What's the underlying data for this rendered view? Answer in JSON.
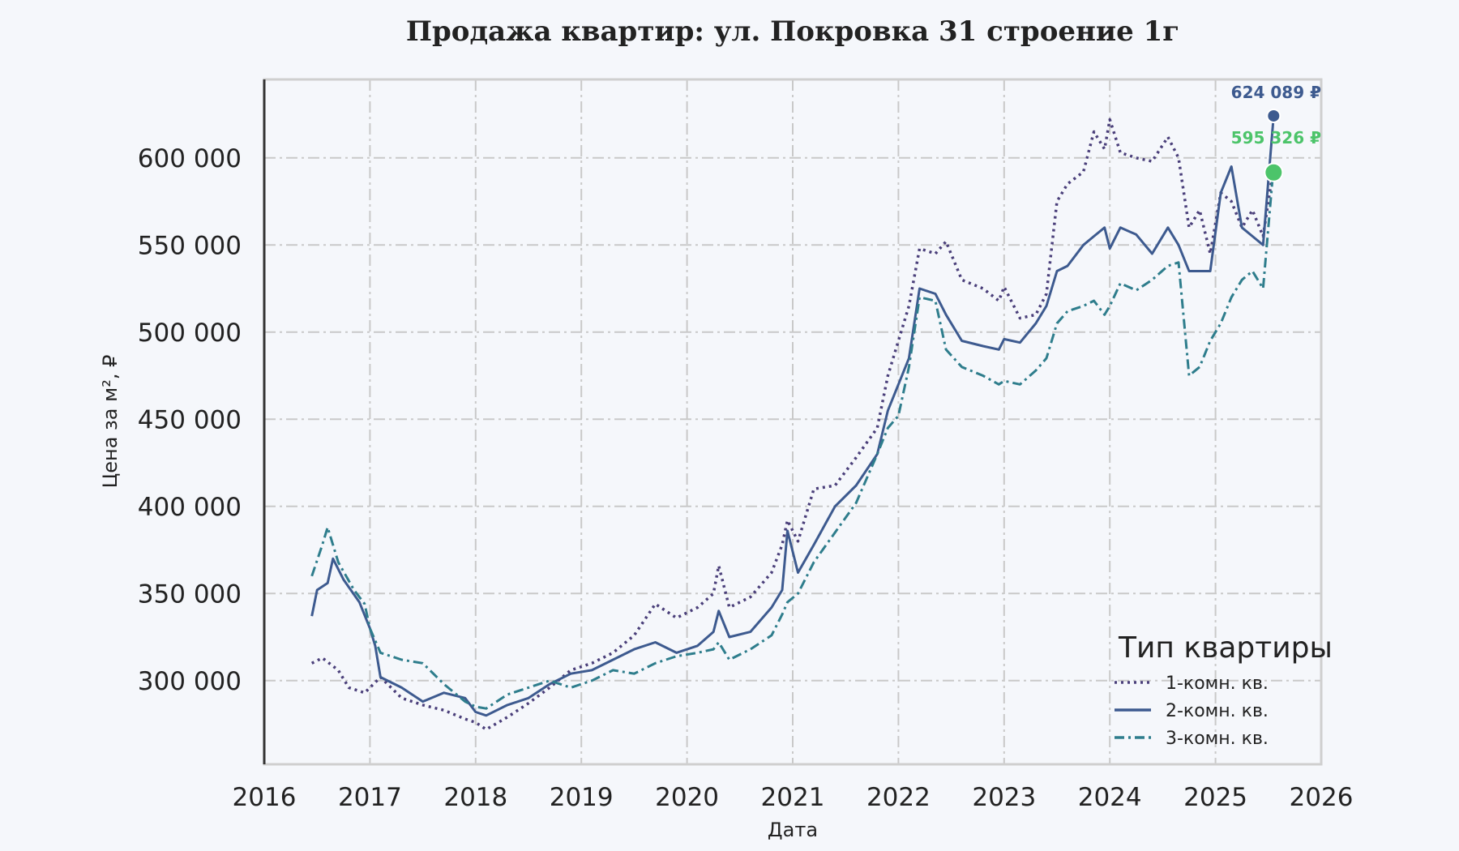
{
  "chart_data": {
    "type": "line",
    "title": "Продажа квартир: ул. Покровка 31 строение 1г",
    "xlabel": "Дата",
    "ylabel": "Цена за м², ₽",
    "xlim": [
      2016,
      2026
    ],
    "ylim": [
      252000,
      645000
    ],
    "x_ticks": [
      2016,
      2017,
      2018,
      2019,
      2020,
      2021,
      2022,
      2023,
      2024,
      2025,
      2026
    ],
    "y_ticks": [
      300000,
      350000,
      400000,
      450000,
      500000,
      550000,
      600000
    ],
    "y_tick_labels": [
      "300 000",
      "350 000",
      "400 000",
      "450 000",
      "500 000",
      "550 000",
      "600 000"
    ],
    "grid": true,
    "legend": {
      "title": "Тип квартиры",
      "position": "bottom-right"
    },
    "series": [
      {
        "name": "1-комн. кв.",
        "color": "#4a3f7a",
        "style": "dotted",
        "points": [
          [
            2016.45,
            310000
          ],
          [
            2016.55,
            313000
          ],
          [
            2016.7,
            306000
          ],
          [
            2016.8,
            296000
          ],
          [
            2016.95,
            293000
          ],
          [
            2017.1,
            302000
          ],
          [
            2017.3,
            290000
          ],
          [
            2017.5,
            286000
          ],
          [
            2017.7,
            283000
          ],
          [
            2017.9,
            278000
          ],
          [
            2018.0,
            276000
          ],
          [
            2018.1,
            272000
          ],
          [
            2018.3,
            279000
          ],
          [
            2018.5,
            287000
          ],
          [
            2018.7,
            296000
          ],
          [
            2018.9,
            306000
          ],
          [
            2019.1,
            310000
          ],
          [
            2019.3,
            316000
          ],
          [
            2019.5,
            326000
          ],
          [
            2019.7,
            344000
          ],
          [
            2019.9,
            336000
          ],
          [
            2020.1,
            342000
          ],
          [
            2020.25,
            350000
          ],
          [
            2020.3,
            366000
          ],
          [
            2020.4,
            342000
          ],
          [
            2020.6,
            348000
          ],
          [
            2020.8,
            362000
          ],
          [
            2020.9,
            378000
          ],
          [
            2020.95,
            392000
          ],
          [
            2021.05,
            380000
          ],
          [
            2021.2,
            410000
          ],
          [
            2021.4,
            412000
          ],
          [
            2021.6,
            428000
          ],
          [
            2021.8,
            445000
          ],
          [
            2021.9,
            475000
          ],
          [
            2022.0,
            495000
          ],
          [
            2022.1,
            515000
          ],
          [
            2022.2,
            548000
          ],
          [
            2022.35,
            545000
          ],
          [
            2022.45,
            552000
          ],
          [
            2022.6,
            530000
          ],
          [
            2022.8,
            525000
          ],
          [
            2022.95,
            518000
          ],
          [
            2023.0,
            526000
          ],
          [
            2023.15,
            508000
          ],
          [
            2023.3,
            510000
          ],
          [
            2023.4,
            522000
          ],
          [
            2023.5,
            575000
          ],
          [
            2023.6,
            585000
          ],
          [
            2023.75,
            592000
          ],
          [
            2023.85,
            615000
          ],
          [
            2023.95,
            605000
          ],
          [
            2024.0,
            622000
          ],
          [
            2024.1,
            603000
          ],
          [
            2024.25,
            600000
          ],
          [
            2024.4,
            598000
          ],
          [
            2024.55,
            612000
          ],
          [
            2024.65,
            600000
          ],
          [
            2024.75,
            560000
          ],
          [
            2024.85,
            570000
          ],
          [
            2024.95,
            545000
          ],
          [
            2025.05,
            580000
          ],
          [
            2025.15,
            575000
          ],
          [
            2025.25,
            560000
          ],
          [
            2025.35,
            570000
          ],
          [
            2025.45,
            555000
          ],
          [
            2025.55,
            595000
          ]
        ]
      },
      {
        "name": "2-комн. кв.",
        "color": "#3d5a8f",
        "style": "solid",
        "points": [
          [
            2016.45,
            337000
          ],
          [
            2016.5,
            352000
          ],
          [
            2016.6,
            356000
          ],
          [
            2016.65,
            370000
          ],
          [
            2016.75,
            358000
          ],
          [
            2016.9,
            345000
          ],
          [
            2017.0,
            330000
          ],
          [
            2017.05,
            320000
          ],
          [
            2017.1,
            302000
          ],
          [
            2017.3,
            296000
          ],
          [
            2017.5,
            288000
          ],
          [
            2017.7,
            293000
          ],
          [
            2017.9,
            290000
          ],
          [
            2018.0,
            282000
          ],
          [
            2018.1,
            280000
          ],
          [
            2018.3,
            286000
          ],
          [
            2018.5,
            290000
          ],
          [
            2018.7,
            298000
          ],
          [
            2018.9,
            304000
          ],
          [
            2019.1,
            306000
          ],
          [
            2019.3,
            312000
          ],
          [
            2019.5,
            318000
          ],
          [
            2019.7,
            322000
          ],
          [
            2019.9,
            316000
          ],
          [
            2020.1,
            320000
          ],
          [
            2020.25,
            328000
          ],
          [
            2020.3,
            340000
          ],
          [
            2020.4,
            325000
          ],
          [
            2020.6,
            328000
          ],
          [
            2020.8,
            342000
          ],
          [
            2020.9,
            352000
          ],
          [
            2020.95,
            386000
          ],
          [
            2021.05,
            362000
          ],
          [
            2021.2,
            378000
          ],
          [
            2021.4,
            400000
          ],
          [
            2021.6,
            412000
          ],
          [
            2021.8,
            430000
          ],
          [
            2021.9,
            455000
          ],
          [
            2022.0,
            470000
          ],
          [
            2022.1,
            485000
          ],
          [
            2022.2,
            525000
          ],
          [
            2022.35,
            522000
          ],
          [
            2022.45,
            510000
          ],
          [
            2022.6,
            495000
          ],
          [
            2022.8,
            492000
          ],
          [
            2022.95,
            490000
          ],
          [
            2023.0,
            496000
          ],
          [
            2023.15,
            494000
          ],
          [
            2023.3,
            505000
          ],
          [
            2023.4,
            515000
          ],
          [
            2023.5,
            535000
          ],
          [
            2023.6,
            538000
          ],
          [
            2023.75,
            550000
          ],
          [
            2023.85,
            555000
          ],
          [
            2023.95,
            560000
          ],
          [
            2024.0,
            548000
          ],
          [
            2024.1,
            560000
          ],
          [
            2024.25,
            556000
          ],
          [
            2024.4,
            545000
          ],
          [
            2024.55,
            560000
          ],
          [
            2024.65,
            550000
          ],
          [
            2024.75,
            535000
          ],
          [
            2024.85,
            535000
          ],
          [
            2024.95,
            535000
          ],
          [
            2025.05,
            580000
          ],
          [
            2025.15,
            595000
          ],
          [
            2025.25,
            560000
          ],
          [
            2025.35,
            555000
          ],
          [
            2025.45,
            550000
          ],
          [
            2025.55,
            624089
          ]
        ]
      },
      {
        "name": "3-комн. кв.",
        "color": "#2e7d8c",
        "style": "dashdot",
        "points": [
          [
            2016.45,
            360000
          ],
          [
            2016.55,
            378000
          ],
          [
            2016.6,
            388000
          ],
          [
            2016.7,
            368000
          ],
          [
            2016.85,
            352000
          ],
          [
            2016.95,
            344000
          ],
          [
            2017.0,
            330000
          ],
          [
            2017.1,
            316000
          ],
          [
            2017.3,
            312000
          ],
          [
            2017.5,
            310000
          ],
          [
            2017.7,
            298000
          ],
          [
            2017.9,
            288000
          ],
          [
            2018.0,
            285000
          ],
          [
            2018.1,
            284000
          ],
          [
            2018.3,
            292000
          ],
          [
            2018.5,
            296000
          ],
          [
            2018.7,
            300000
          ],
          [
            2018.9,
            296000
          ],
          [
            2019.1,
            300000
          ],
          [
            2019.3,
            306000
          ],
          [
            2019.5,
            304000
          ],
          [
            2019.7,
            310000
          ],
          [
            2019.9,
            314000
          ],
          [
            2020.1,
            316000
          ],
          [
            2020.25,
            318000
          ],
          [
            2020.3,
            322000
          ],
          [
            2020.4,
            312000
          ],
          [
            2020.6,
            318000
          ],
          [
            2020.8,
            326000
          ],
          [
            2020.9,
            338000
          ],
          [
            2020.95,
            345000
          ],
          [
            2021.05,
            350000
          ],
          [
            2021.2,
            368000
          ],
          [
            2021.4,
            385000
          ],
          [
            2021.6,
            402000
          ],
          [
            2021.8,
            430000
          ],
          [
            2021.9,
            445000
          ],
          [
            2022.0,
            452000
          ],
          [
            2022.1,
            480000
          ],
          [
            2022.2,
            520000
          ],
          [
            2022.35,
            518000
          ],
          [
            2022.45,
            490000
          ],
          [
            2022.6,
            480000
          ],
          [
            2022.8,
            475000
          ],
          [
            2022.95,
            470000
          ],
          [
            2023.0,
            472000
          ],
          [
            2023.15,
            470000
          ],
          [
            2023.3,
            478000
          ],
          [
            2023.4,
            485000
          ],
          [
            2023.5,
            505000
          ],
          [
            2023.6,
            512000
          ],
          [
            2023.75,
            515000
          ],
          [
            2023.85,
            518000
          ],
          [
            2023.95,
            510000
          ],
          [
            2024.0,
            515000
          ],
          [
            2024.1,
            528000
          ],
          [
            2024.25,
            524000
          ],
          [
            2024.4,
            530000
          ],
          [
            2024.55,
            538000
          ],
          [
            2024.65,
            540000
          ],
          [
            2024.75,
            475000
          ],
          [
            2024.85,
            480000
          ],
          [
            2024.95,
            495000
          ],
          [
            2025.05,
            505000
          ],
          [
            2025.15,
            520000
          ],
          [
            2025.25,
            530000
          ],
          [
            2025.35,
            535000
          ],
          [
            2025.45,
            525000
          ],
          [
            2025.55,
            595326
          ]
        ]
      }
    ],
    "end_labels": [
      {
        "text": "624 089 ₽",
        "series": 1,
        "color": "#3d5a8f"
      },
      {
        "text": "595 326 ₽",
        "series": 2,
        "color": "#4cc46a"
      }
    ]
  }
}
